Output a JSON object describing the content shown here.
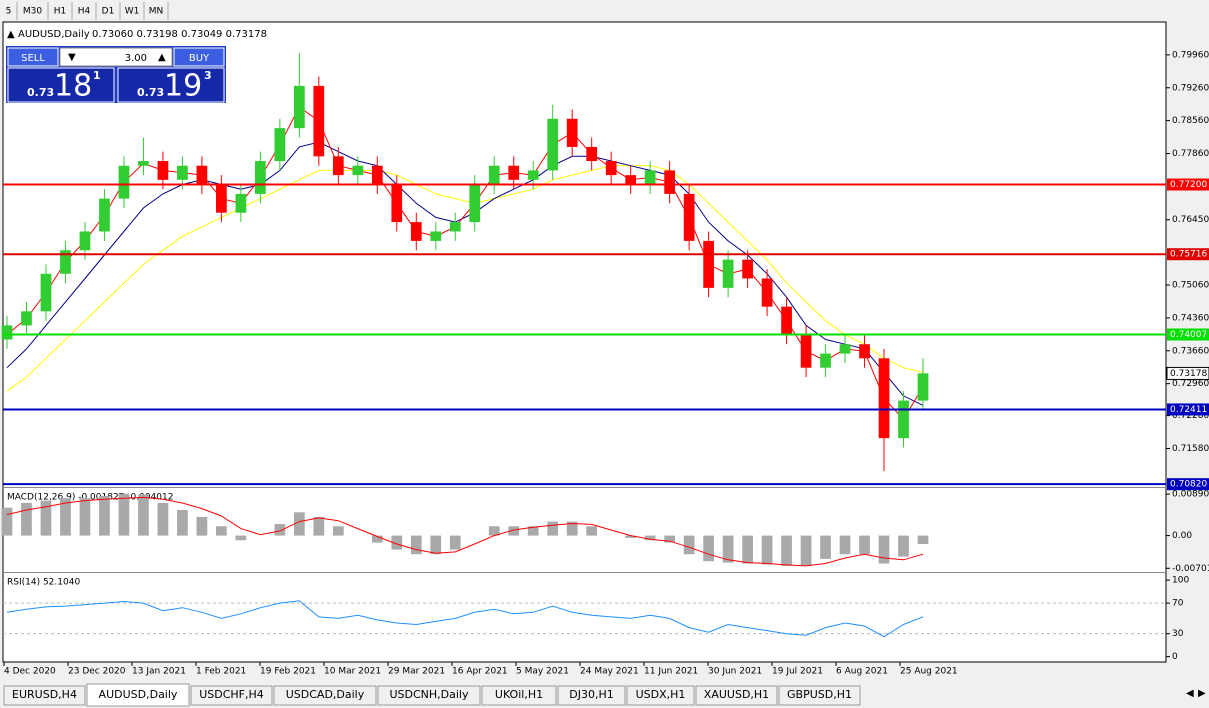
{
  "toolbar": {
    "timeframes": [
      "5",
      "M30",
      "H1",
      "H4",
      "D1",
      "W1",
      "MN"
    ]
  },
  "chart": {
    "symbol": "AUDUSD,Daily",
    "ohlc": "0.73060 0.73198 0.73049 0.73178",
    "trade_panel": {
      "sell": "SELL",
      "buy": "BUY",
      "lots": "3.00",
      "sell_big": "0.73",
      "sell_digits": "18",
      "sell_sup": "1",
      "buy_big": "0.73",
      "buy_digits": "19",
      "buy_sup": "3"
    },
    "price": {
      "ylim": [
        0.7076,
        0.8066
      ],
      "up_color": "#32cd32",
      "down_color": "#ff0000",
      "yticks": [
        {
          "value": 0.7996,
          "label": "0.79960"
        },
        {
          "value": 0.7926,
          "label": "0.79260"
        },
        {
          "value": 0.7856,
          "label": "0.78560"
        },
        {
          "value": 0.7786,
          "label": "0.77860"
        },
        {
          "value": 0.7645,
          "label": "0.76450"
        },
        {
          "value": 0.7506,
          "label": "0.75060"
        },
        {
          "value": 0.7436,
          "label": "0.74360"
        },
        {
          "value": 0.7366,
          "label": "0.73660"
        },
        {
          "value": 0.7296,
          "label": "0.72960"
        },
        {
          "value": 0.7228,
          "label": "0.72280"
        },
        {
          "value": 0.7158,
          "label": "0.71580"
        }
      ],
      "levels": [
        {
          "value": 0.772,
          "label": "0.77200",
          "color": "#ff0000"
        },
        {
          "value": 0.75716,
          "label": "0.75716",
          "color": "#e00000"
        },
        {
          "value": 0.74007,
          "label": "0.74007",
          "color": "#00e000"
        },
        {
          "value": 0.72411,
          "label": "0.72411",
          "color": "#0000c0"
        },
        {
          "value": 0.7082,
          "label": "0.70820",
          "color": "#0000c0"
        }
      ],
      "current": {
        "value": 0.73178,
        "label": "0.73178"
      },
      "candles": [
        [
          0.739,
          0.744,
          0.737,
          0.742
        ],
        [
          0.742,
          0.747,
          0.74,
          0.745
        ],
        [
          0.745,
          0.755,
          0.743,
          0.753
        ],
        [
          0.753,
          0.76,
          0.751,
          0.758
        ],
        [
          0.758,
          0.764,
          0.756,
          0.762
        ],
        [
          0.762,
          0.771,
          0.76,
          0.769
        ],
        [
          0.769,
          0.778,
          0.767,
          0.776
        ],
        [
          0.776,
          0.782,
          0.774,
          0.777
        ],
        [
          0.777,
          0.779,
          0.771,
          0.773
        ],
        [
          0.773,
          0.778,
          0.771,
          0.776
        ],
        [
          0.776,
          0.778,
          0.77,
          0.772
        ],
        [
          0.772,
          0.774,
          0.764,
          0.766
        ],
        [
          0.766,
          0.772,
          0.764,
          0.77
        ],
        [
          0.77,
          0.779,
          0.768,
          0.777
        ],
        [
          0.777,
          0.786,
          0.775,
          0.784
        ],
        [
          0.784,
          0.8,
          0.782,
          0.793
        ],
        [
          0.793,
          0.795,
          0.776,
          0.778
        ],
        [
          0.778,
          0.78,
          0.772,
          0.774
        ],
        [
          0.774,
          0.778,
          0.772,
          0.776
        ],
        [
          0.776,
          0.778,
          0.77,
          0.772
        ],
        [
          0.772,
          0.774,
          0.762,
          0.764
        ],
        [
          0.764,
          0.766,
          0.758,
          0.76
        ],
        [
          0.76,
          0.764,
          0.758,
          0.762
        ],
        [
          0.762,
          0.766,
          0.76,
          0.764
        ],
        [
          0.764,
          0.774,
          0.762,
          0.772
        ],
        [
          0.772,
          0.778,
          0.77,
          0.776
        ],
        [
          0.776,
          0.778,
          0.771,
          0.773
        ],
        [
          0.773,
          0.777,
          0.771,
          0.775
        ],
        [
          0.775,
          0.789,
          0.773,
          0.786
        ],
        [
          0.786,
          0.788,
          0.778,
          0.78
        ],
        [
          0.78,
          0.782,
          0.775,
          0.777
        ],
        [
          0.777,
          0.779,
          0.772,
          0.774
        ],
        [
          0.774,
          0.776,
          0.77,
          0.772
        ],
        [
          0.772,
          0.777,
          0.77,
          0.775
        ],
        [
          0.775,
          0.777,
          0.768,
          0.77
        ],
        [
          0.77,
          0.772,
          0.758,
          0.76
        ],
        [
          0.76,
          0.762,
          0.748,
          0.75
        ],
        [
          0.75,
          0.758,
          0.748,
          0.756
        ],
        [
          0.756,
          0.758,
          0.75,
          0.752
        ],
        [
          0.752,
          0.754,
          0.744,
          0.746
        ],
        [
          0.746,
          0.748,
          0.738,
          0.74
        ],
        [
          0.74,
          0.742,
          0.731,
          0.733
        ],
        [
          0.733,
          0.738,
          0.731,
          0.736
        ],
        [
          0.736,
          0.74,
          0.734,
          0.738
        ],
        [
          0.738,
          0.74,
          0.733,
          0.735
        ],
        [
          0.735,
          0.737,
          0.711,
          0.718
        ],
        [
          0.718,
          0.728,
          0.716,
          0.726
        ],
        [
          0.726,
          0.735,
          0.724,
          0.7318
        ]
      ],
      "ma_fast": {
        "color": "#ff0000",
        "values": [
          0.74,
          0.7435,
          0.749,
          0.7555,
          0.76,
          0.7655,
          0.7725,
          0.7765,
          0.775,
          0.7745,
          0.774,
          0.769,
          0.768,
          0.7735,
          0.7805,
          0.7885,
          0.7855,
          0.776,
          0.775,
          0.774,
          0.768,
          0.762,
          0.761,
          0.763,
          0.768,
          0.774,
          0.7745,
          0.774,
          0.7805,
          0.783,
          0.7785,
          0.7755,
          0.773,
          0.7735,
          0.7725,
          0.765,
          0.755,
          0.753,
          0.754,
          0.749,
          0.743,
          0.7365,
          0.7345,
          0.737,
          0.7365,
          0.7265,
          0.722,
          0.729
        ]
      },
      "ma_mid": {
        "color": "#00008b",
        "values": [
          0.733,
          0.737,
          0.742,
          0.747,
          0.752,
          0.757,
          0.762,
          0.767,
          0.77,
          0.772,
          0.773,
          0.772,
          0.771,
          0.772,
          0.775,
          0.78,
          0.781,
          0.779,
          0.777,
          0.776,
          0.772,
          0.768,
          0.765,
          0.764,
          0.766,
          0.769,
          0.771,
          0.773,
          0.776,
          0.778,
          0.778,
          0.777,
          0.776,
          0.775,
          0.774,
          0.77,
          0.764,
          0.76,
          0.757,
          0.753,
          0.748,
          0.742,
          0.739,
          0.738,
          0.737,
          0.732,
          0.727,
          0.725
        ]
      },
      "ma_slow": {
        "color": "#ffff00",
        "values": [
          0.728,
          0.731,
          0.735,
          0.739,
          0.743,
          0.747,
          0.751,
          0.755,
          0.758,
          0.761,
          0.763,
          0.765,
          0.767,
          0.769,
          0.771,
          0.773,
          0.775,
          0.775,
          0.775,
          0.775,
          0.774,
          0.772,
          0.77,
          0.769,
          0.768,
          0.769,
          0.77,
          0.771,
          0.773,
          0.774,
          0.775,
          0.776,
          0.776,
          0.776,
          0.775,
          0.772,
          0.768,
          0.764,
          0.76,
          0.756,
          0.751,
          0.747,
          0.743,
          0.74,
          0.738,
          0.735,
          0.733,
          0.732
        ]
      }
    },
    "macd": {
      "label": "MACD(12,26,9) -0.001827 -0.004012",
      "ylim": [
        -0.0076,
        0.01
      ],
      "yticks": [
        0.008904,
        {
          "value": 0,
          "label": "0.00"
        },
        -0.007013
      ],
      "hist_color": "#a9a9a9",
      "signal_color": "#ff0000",
      "histogram": [
        0.006,
        0.007,
        0.0075,
        0.008,
        0.008,
        0.0085,
        0.009,
        0.0088,
        0.007,
        0.0055,
        0.004,
        0.002,
        -0.001,
        0,
        0.0025,
        0.005,
        0.004,
        0.002,
        0,
        -0.0015,
        -0.003,
        -0.004,
        -0.004,
        -0.003,
        0,
        0.002,
        0.002,
        0.002,
        0.003,
        0.003,
        0.002,
        0,
        -0.0005,
        -0.001,
        -0.0015,
        -0.004,
        -0.0055,
        -0.0058,
        -0.006,
        -0.0062,
        -0.0065,
        -0.0065,
        -0.005,
        -0.004,
        -0.004,
        -0.006,
        -0.0045,
        -0.0018
      ],
      "signal": [
        0.0045,
        0.0055,
        0.0062,
        0.007,
        0.0075,
        0.0078,
        0.008,
        0.0082,
        0.0078,
        0.007,
        0.0058,
        0.0042,
        0.0015,
        0.0002,
        0.001,
        0.003,
        0.0038,
        0.0032,
        0.0015,
        -0.0002,
        -0.0018,
        -0.003,
        -0.0038,
        -0.0035,
        -0.0018,
        0,
        0.0012,
        0.0018,
        0.0022,
        0.0026,
        0.0024,
        0.0012,
        0,
        -0.0008,
        -0.0012,
        -0.0025,
        -0.004,
        -0.0052,
        -0.0058,
        -0.006,
        -0.0063,
        -0.0065,
        -0.006,
        -0.0048,
        -0.004,
        -0.0048,
        -0.0052,
        -0.004
      ]
    },
    "rsi": {
      "label": "RSI(14) 52.1040",
      "ylim": [
        -7,
        108
      ],
      "yticks": [
        100,
        70,
        30,
        0
      ],
      "levels": [
        70,
        30
      ],
      "color": "#1e90ff",
      "values": [
        58,
        62,
        65,
        66,
        68,
        70,
        72,
        70,
        60,
        64,
        58,
        50,
        56,
        64,
        70,
        73,
        52,
        50,
        54,
        48,
        44,
        42,
        46,
        50,
        58,
        62,
        56,
        58,
        66,
        58,
        54,
        52,
        50,
        54,
        50,
        38,
        32,
        42,
        38,
        34,
        30,
        28,
        38,
        44,
        40,
        26,
        42,
        52.104
      ]
    },
    "dates": [
      "4 Dec 2020",
      "23 Dec 2020",
      "13 Jan 2021",
      "1 Feb 2021",
      "19 Feb 2021",
      "10 Mar 2021",
      "29 Mar 2021",
      "16 Apr 2021",
      "5 May 2021",
      "24 May 2021",
      "11 Jun 2021",
      "30 Jun 2021",
      "19 Jul 2021",
      "6 Aug 2021",
      "25 Aug 2021"
    ]
  },
  "tabs": [
    "EURUSD,H4",
    "AUDUSD,Daily",
    "USDCHF,H4",
    "USDCAD,Daily",
    "USDCNH,Daily",
    "UKOil,H1",
    "DJ30,H1",
    "USDX,H1",
    "XAUUSD,H1",
    "GBPUSD,H1"
  ]
}
